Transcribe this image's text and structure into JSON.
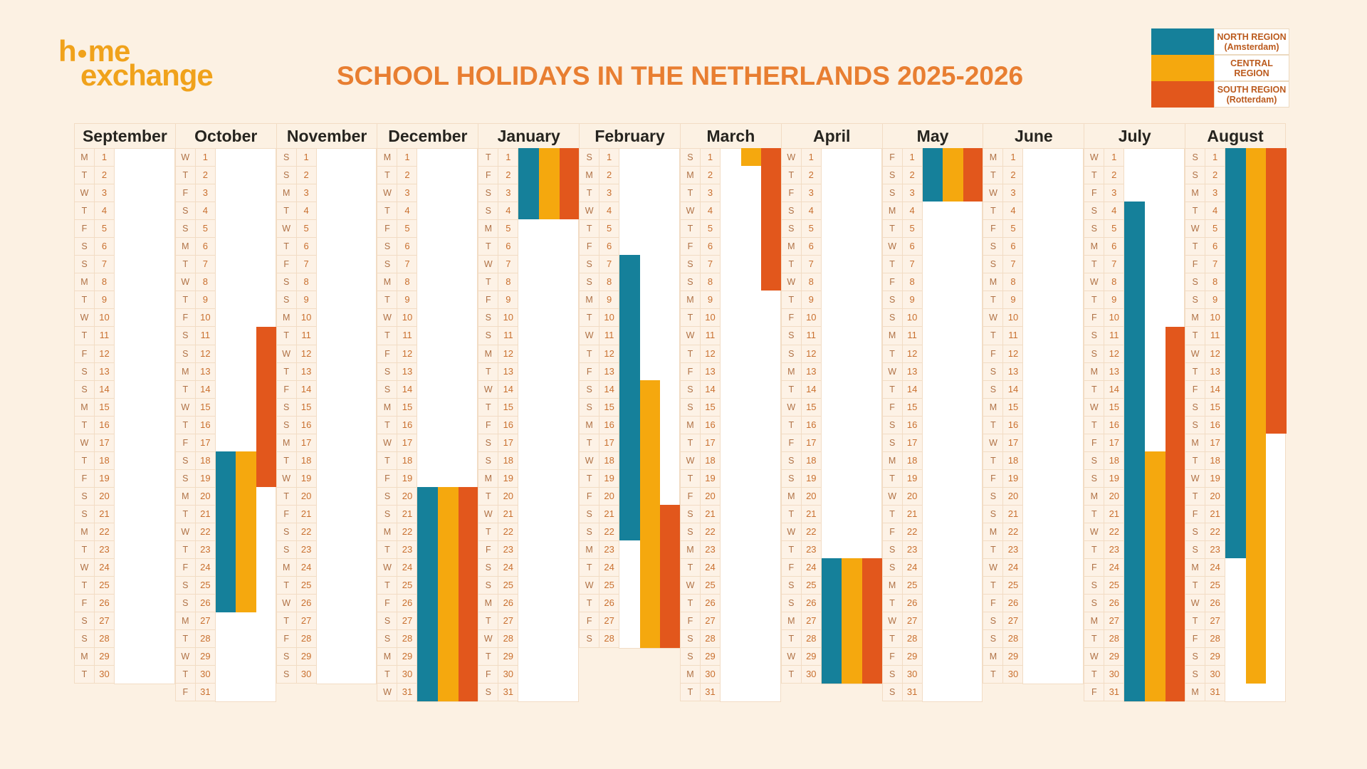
{
  "logo": {
    "line1_prefix": "h",
    "line1_suffix": "me",
    "line2": "exchange",
    "color": "#f0a21b"
  },
  "title": {
    "text": "SCHOOL HOLIDAYS IN THE NETHERLANDS 2025-2026",
    "color": "#e87e31"
  },
  "legend": {
    "items": [
      {
        "id": "north",
        "color": "#15809a",
        "lines": [
          "NORTH REGION",
          "(Amsterdam)"
        ]
      },
      {
        "id": "central",
        "color": "#f5a80e",
        "lines": [
          "CENTRAL",
          "REGION"
        ]
      },
      {
        "id": "south",
        "color": "#e2571c",
        "lines": [
          "SOUTH REGION",
          "(Rotterdam)"
        ]
      }
    ]
  },
  "calendar": {
    "weekday_letters": [
      "M",
      "T",
      "W",
      "T",
      "F",
      "S",
      "S"
    ],
    "region_order": [
      "north",
      "central",
      "south"
    ],
    "region_colors": {
      "north": "#15809a",
      "central": "#f5a80e",
      "south": "#e2571c"
    },
    "months": [
      {
        "name": "September",
        "days": 30,
        "start_weekday": 0
      },
      {
        "name": "October",
        "days": 31,
        "start_weekday": 2
      },
      {
        "name": "November",
        "days": 30,
        "start_weekday": 5
      },
      {
        "name": "December",
        "days": 31,
        "start_weekday": 0
      },
      {
        "name": "January",
        "days": 31,
        "start_weekday": 3
      },
      {
        "name": "February",
        "days": 28,
        "start_weekday": 6
      },
      {
        "name": "March",
        "days": 31,
        "start_weekday": 6
      },
      {
        "name": "April",
        "days": 30,
        "start_weekday": 2
      },
      {
        "name": "May",
        "days": 31,
        "start_weekday": 4
      },
      {
        "name": "June",
        "days": 30,
        "start_weekday": 0
      },
      {
        "name": "July",
        "days": 31,
        "start_weekday": 2
      },
      {
        "name": "August",
        "days": 31,
        "start_weekday": 5
      }
    ],
    "holidays": [
      {
        "month": "October",
        "region": "south",
        "start": 11,
        "end": 19
      },
      {
        "month": "October",
        "region": "north",
        "start": 18,
        "end": 26
      },
      {
        "month": "October",
        "region": "central",
        "start": 18,
        "end": 26
      },
      {
        "month": "December",
        "region": "north",
        "start": 20,
        "end": 31
      },
      {
        "month": "December",
        "region": "central",
        "start": 20,
        "end": 31
      },
      {
        "month": "December",
        "region": "south",
        "start": 20,
        "end": 31
      },
      {
        "month": "January",
        "region": "north",
        "start": 1,
        "end": 4
      },
      {
        "month": "January",
        "region": "central",
        "start": 1,
        "end": 4
      },
      {
        "month": "January",
        "region": "south",
        "start": 1,
        "end": 4
      },
      {
        "month": "February",
        "region": "north",
        "start": 7,
        "end": 22
      },
      {
        "month": "February",
        "region": "central",
        "start": 14,
        "end": 28
      },
      {
        "month": "February",
        "region": "south",
        "start": 21,
        "end": 28
      },
      {
        "month": "March",
        "region": "central",
        "start": 1,
        "end": 1
      },
      {
        "month": "March",
        "region": "south",
        "start": 1,
        "end": 8
      },
      {
        "month": "April",
        "region": "north",
        "start": 24,
        "end": 30
      },
      {
        "month": "April",
        "region": "central",
        "start": 24,
        "end": 30
      },
      {
        "month": "April",
        "region": "south",
        "start": 24,
        "end": 30
      },
      {
        "month": "May",
        "region": "north",
        "start": 1,
        "end": 3
      },
      {
        "month": "May",
        "region": "central",
        "start": 1,
        "end": 3
      },
      {
        "month": "May",
        "region": "south",
        "start": 1,
        "end": 3
      },
      {
        "month": "July",
        "region": "north",
        "start": 4,
        "end": 31
      },
      {
        "month": "July",
        "region": "central",
        "start": 18,
        "end": 31
      },
      {
        "month": "July",
        "region": "south",
        "start": 11,
        "end": 31
      },
      {
        "month": "August",
        "region": "north",
        "start": 1,
        "end": 23
      },
      {
        "month": "August",
        "region": "central",
        "start": 1,
        "end": 30
      },
      {
        "month": "August",
        "region": "south",
        "start": 1,
        "end": 16
      }
    ]
  },
  "chart_data": {
    "type": "table",
    "title": "SCHOOL HOLIDAYS IN THE NETHERLANDS 2025-2026",
    "categories": [
      "September",
      "October",
      "November",
      "December",
      "January",
      "February",
      "March",
      "April",
      "May",
      "June",
      "July",
      "August"
    ],
    "legend_position": "top-right",
    "series": [
      {
        "name": "NORTH REGION (Amsterdam)",
        "color": "#15809a",
        "holiday_ranges": [
          {
            "from": "2025-10-18",
            "to": "2025-10-26"
          },
          {
            "from": "2025-12-20",
            "to": "2026-01-04"
          },
          {
            "from": "2026-02-07",
            "to": "2026-02-22"
          },
          {
            "from": "2026-04-24",
            "to": "2026-05-03"
          },
          {
            "from": "2026-07-04",
            "to": "2026-08-23"
          }
        ]
      },
      {
        "name": "CENTRAL REGION",
        "color": "#f5a80e",
        "holiday_ranges": [
          {
            "from": "2025-10-18",
            "to": "2025-10-26"
          },
          {
            "from": "2025-12-20",
            "to": "2026-01-04"
          },
          {
            "from": "2026-02-14",
            "to": "2026-03-01"
          },
          {
            "from": "2026-04-24",
            "to": "2026-05-03"
          },
          {
            "from": "2026-07-18",
            "to": "2026-08-30"
          }
        ]
      },
      {
        "name": "SOUTH REGION (Rotterdam)",
        "color": "#e2571c",
        "holiday_ranges": [
          {
            "from": "2025-10-11",
            "to": "2025-10-19"
          },
          {
            "from": "2025-12-20",
            "to": "2026-01-04"
          },
          {
            "from": "2026-02-21",
            "to": "2026-03-08"
          },
          {
            "from": "2026-04-24",
            "to": "2026-05-03"
          },
          {
            "from": "2026-07-11",
            "to": "2026-08-16"
          }
        ]
      }
    ]
  }
}
